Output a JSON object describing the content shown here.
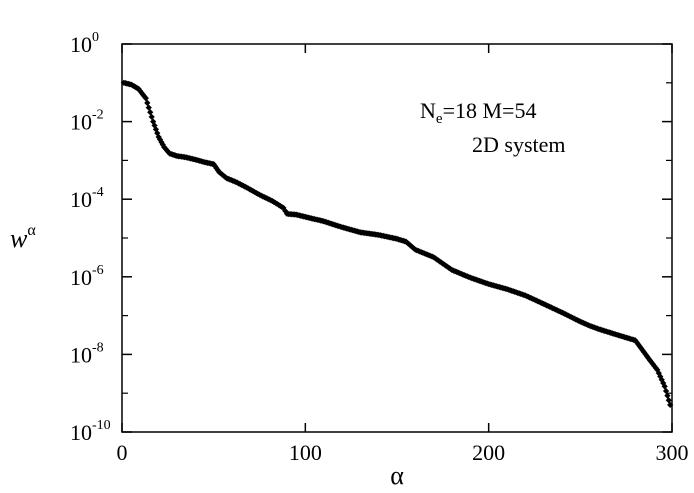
{
  "chart_data": {
    "type": "scatter",
    "xlabel": "α",
    "ylabel": "w",
    "ylabel_sup": "α",
    "xlim": [
      0,
      300
    ],
    "ylim_log10": [
      -10,
      0
    ],
    "yscale": "log",
    "grid": false,
    "legend": "none",
    "x_ticks": [
      "0",
      "100",
      "200",
      "300"
    ],
    "y_ticks": [
      {
        "base": "10",
        "exp": "0"
      },
      {
        "base": "10",
        "exp": "-2"
      },
      {
        "base": "10",
        "exp": "-4"
      },
      {
        "base": "10",
        "exp": "-6"
      },
      {
        "base": "10",
        "exp": "-8"
      },
      {
        "base": "10",
        "exp": "-10"
      }
    ],
    "annotations": {
      "line1_part1": "N",
      "line1_sub": "e",
      "line1_part2": "=18  M=54",
      "line2": "2D system"
    },
    "marker_color": "#000000",
    "series": [
      {
        "x": [
          1,
          5,
          9,
          13,
          17,
          20,
          23,
          26,
          30,
          35,
          40,
          45,
          50,
          53,
          57,
          62,
          68,
          75,
          82,
          88,
          90,
          95,
          100,
          110,
          120,
          130,
          140,
          150,
          155,
          160,
          170,
          180,
          190,
          200,
          210,
          220,
          230,
          240,
          250,
          255,
          260,
          270,
          280,
          288,
          292,
          296,
          299
        ],
        "y": [
          0.1,
          0.09,
          0.07,
          0.04,
          0.01,
          0.004,
          0.0022,
          0.0015,
          0.0013,
          0.0012,
          0.00105,
          0.0009,
          0.0008,
          0.0005,
          0.00035,
          0.00028,
          0.0002,
          0.00013,
          9e-05,
          6e-05,
          4.2e-05,
          4e-05,
          3.5e-05,
          2.7e-05,
          1.9e-05,
          1.4e-05,
          1.2e-05,
          9.5e-06,
          8e-06,
          5e-06,
          3.2e-06,
          1.5e-06,
          9.5e-07,
          6.5e-07,
          4.8e-07,
          3.3e-07,
          2e-07,
          1.2e-07,
          7e-08,
          5.5e-08,
          4.5e-08,
          3.2e-08,
          2.3e-08,
          7e-09,
          4e-09,
          1.5e-09,
          5e-10
        ]
      }
    ]
  }
}
